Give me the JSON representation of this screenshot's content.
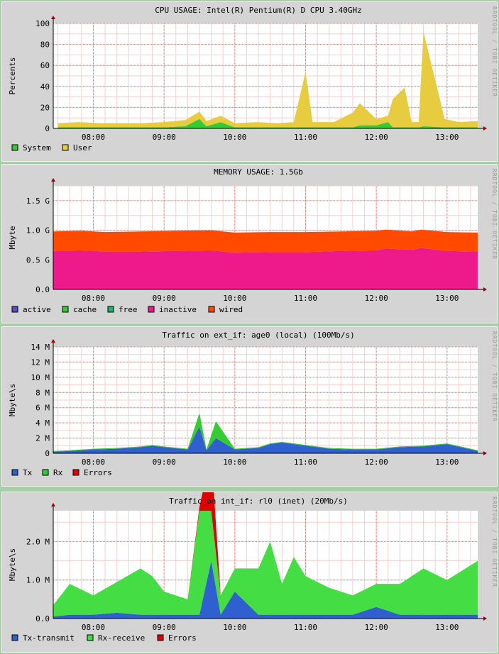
{
  "watermark": "RRDTOOL / TOBI OETIKER",
  "chart_data": [
    {
      "type": "area",
      "title": "CPU USAGE: Intel(R) Pentium(R) D CPU 3.40GHz",
      "ylabel": "Percents",
      "ylim": [
        0,
        100
      ],
      "yticks": [
        0,
        20,
        40,
        60,
        80,
        100
      ],
      "ytick_labels": [
        "0",
        "20",
        "40",
        "60",
        "80",
        "100"
      ],
      "xlim": [
        "07:26",
        "13:26"
      ],
      "xticks": [
        "08:00",
        "09:00",
        "10:00",
        "11:00",
        "12:00",
        "13:00"
      ],
      "x": [
        "07:30",
        "07:48",
        "08:06",
        "08:24",
        "08:42",
        "09:00",
        "09:18",
        "09:30",
        "09:36",
        "09:48",
        "10:00",
        "10:18",
        "10:36",
        "10:50",
        "11:00",
        "11:06",
        "11:24",
        "11:40",
        "11:46",
        "12:00",
        "12:10",
        "12:14",
        "12:24",
        "12:30",
        "12:36",
        "12:40",
        "12:58",
        "13:10",
        "13:26"
      ],
      "series": [
        {
          "name": "System",
          "color": "#33cc33",
          "values": [
            1,
            1,
            1,
            1,
            1,
            1,
            2,
            9,
            2,
            6,
            1,
            1,
            1,
            1,
            1,
            1,
            1,
            1,
            3,
            3,
            6,
            1,
            1,
            1,
            1,
            2,
            1,
            1,
            1
          ]
        },
        {
          "name": "User",
          "color": "#e8cc40",
          "values": [
            4,
            5,
            4,
            4,
            4,
            5,
            6,
            7,
            5,
            6,
            4,
            5,
            4,
            5,
            53,
            5,
            5,
            14,
            21,
            6,
            6,
            27,
            38,
            5,
            5,
            90,
            8,
            5,
            6
          ]
        }
      ]
    },
    {
      "type": "area",
      "title": "MEMORY USAGE: 1.5Gb",
      "ylabel": "Mbyte",
      "ylim": [
        0,
        1.75
      ],
      "yticks": [
        0,
        0.5,
        1.0,
        1.5
      ],
      "ytick_labels": [
        "0.0",
        "0.5 G",
        "1.0 G",
        "1.5 G"
      ],
      "xlim": [
        "07:26",
        "13:26"
      ],
      "xticks": [
        "08:00",
        "09:00",
        "10:00",
        "11:00",
        "12:00",
        "13:00"
      ],
      "x": [
        "07:26",
        "07:50",
        "08:10",
        "08:40",
        "09:10",
        "09:40",
        "10:00",
        "10:30",
        "11:00",
        "11:30",
        "12:00",
        "12:08",
        "12:30",
        "12:38",
        "13:00",
        "13:26"
      ],
      "series": [
        {
          "name": "active",
          "color": "#5050c8",
          "values": [
            0,
            0,
            0,
            0,
            0,
            0,
            0,
            0,
            0,
            0,
            0,
            0,
            0,
            0,
            0,
            0
          ]
        },
        {
          "name": "cache",
          "color": "#33cc33",
          "values": [
            0,
            0,
            0,
            0,
            0,
            0,
            0,
            0,
            0,
            0,
            0,
            0,
            0,
            0,
            0,
            0
          ]
        },
        {
          "name": "free",
          "color": "#20b070",
          "values": [
            0,
            0,
            0,
            0,
            0,
            0,
            0,
            0,
            0,
            0,
            0,
            0,
            0,
            0,
            0,
            0
          ]
        },
        {
          "name": "inactive",
          "color": "#ee1a8c",
          "values": [
            0.65,
            0.66,
            0.64,
            0.64,
            0.65,
            0.66,
            0.62,
            0.63,
            0.63,
            0.65,
            0.66,
            0.69,
            0.67,
            0.7,
            0.65,
            0.64
          ]
        },
        {
          "name": "wired",
          "color": "#ff4a00",
          "values": [
            0.33,
            0.33,
            0.33,
            0.34,
            0.34,
            0.34,
            0.34,
            0.34,
            0.34,
            0.33,
            0.33,
            0.32,
            0.31,
            0.31,
            0.32,
            0.32
          ]
        }
      ]
    },
    {
      "type": "area",
      "title": "Traffic on ext_if: age0 (local) (100Mb/s)",
      "ylabel": "Mbyte\\s",
      "ylim": [
        0,
        14
      ],
      "yticks": [
        0,
        2,
        4,
        6,
        8,
        10,
        12,
        14
      ],
      "ytick_labels": [
        "0",
        "2 M",
        "4 M",
        "6 M",
        "8 M",
        "10 M",
        "12 M",
        "14 M"
      ],
      "xlim": [
        "07:26",
        "13:26"
      ],
      "xticks": [
        "08:00",
        "09:00",
        "10:00",
        "11:00",
        "12:00",
        "13:00"
      ],
      "x": [
        "07:26",
        "07:40",
        "08:00",
        "08:20",
        "08:40",
        "08:50",
        "09:00",
        "09:20",
        "09:30",
        "09:36",
        "09:44",
        "10:00",
        "10:20",
        "10:30",
        "10:40",
        "11:00",
        "11:20",
        "11:40",
        "12:00",
        "12:20",
        "12:40",
        "13:00",
        "13:26"
      ],
      "series": [
        {
          "name": "Tx",
          "color": "#3060d0",
          "values": [
            0.2,
            0.3,
            0.5,
            0.6,
            0.8,
            1.0,
            0.8,
            0.5,
            3.5,
            0.4,
            2.0,
            0.5,
            0.7,
            1.2,
            1.4,
            1.0,
            0.6,
            0.5,
            0.5,
            0.8,
            0.9,
            1.2,
            0.3
          ]
        },
        {
          "name": "Rx",
          "color": "#33cc33",
          "values": [
            0.1,
            0.1,
            0.1,
            0.1,
            0.1,
            0.1,
            0.1,
            0.1,
            1.8,
            0.1,
            2.2,
            0.1,
            0.1,
            0.1,
            0.1,
            0.1,
            0.1,
            0.1,
            0.1,
            0.1,
            0.1,
            0.1,
            0.1
          ]
        },
        {
          "name": "Errors",
          "color": "#e00000",
          "values": [
            0,
            0,
            0,
            0,
            0,
            0,
            0,
            0,
            0,
            0,
            0,
            0,
            0,
            0,
            0,
            0,
            0,
            0,
            0,
            0,
            0,
            0,
            0
          ]
        }
      ]
    },
    {
      "type": "area",
      "title": "Traffic on int_if: rl0 (inet) (20Mb/s)",
      "ylabel": "Mbyte\\s",
      "ylim": [
        0,
        2.8
      ],
      "yticks": [
        0,
        1.0,
        2.0
      ],
      "ytick_labels": [
        "0.0",
        "1.0 M",
        "2.0 M"
      ],
      "xlim": [
        "07:26",
        "13:26"
      ],
      "xticks": [
        "08:00",
        "09:00",
        "10:00",
        "11:00",
        "12:00",
        "13:00"
      ],
      "x": [
        "07:26",
        "07:40",
        "08:00",
        "08:20",
        "08:40",
        "08:50",
        "09:00",
        "09:20",
        "09:30",
        "09:40",
        "09:48",
        "10:00",
        "10:20",
        "10:30",
        "10:40",
        "10:50",
        "11:00",
        "11:20",
        "11:40",
        "12:00",
        "12:20",
        "12:40",
        "13:00",
        "13:26"
      ],
      "series": [
        {
          "name": "Tx-transmit",
          "color": "#3060d0",
          "values": [
            0.05,
            0.1,
            0.1,
            0.15,
            0.1,
            0.1,
            0.1,
            0.1,
            0.1,
            1.5,
            0.1,
            0.7,
            0.1,
            0.1,
            0.1,
            0.1,
            0.1,
            0.1,
            0.1,
            0.3,
            0.1,
            0.1,
            0.1,
            0.1
          ]
        },
        {
          "name": "Rx-receive",
          "color": "#44dd44",
          "values": [
            0.3,
            0.8,
            0.5,
            0.8,
            1.2,
            1.0,
            0.6,
            0.4,
            2.8,
            2.8,
            0.5,
            0.6,
            1.2,
            1.9,
            0.8,
            1.5,
            1.0,
            0.7,
            0.5,
            0.6,
            0.8,
            1.2,
            0.9,
            1.4
          ]
        },
        {
          "name": "Errors",
          "color": "#e00000",
          "values": [
            0,
            0,
            0,
            0,
            0,
            0,
            0,
            0,
            0,
            0,
            0,
            0,
            0,
            0,
            0,
            0,
            0,
            0,
            0,
            0,
            0,
            0,
            0,
            0
          ]
        }
      ]
    }
  ]
}
